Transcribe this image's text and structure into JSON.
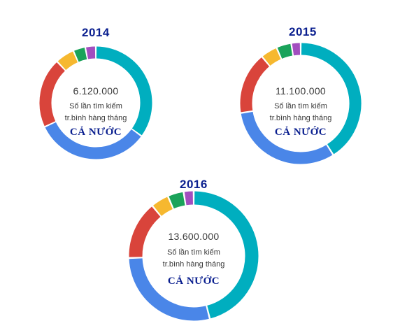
{
  "colors": {
    "teal": "#00aebf",
    "blue": "#4a86e8",
    "red": "#d9443b",
    "yellow": "#f6b82f",
    "green": "#1aa35a",
    "purple": "#a24ebf",
    "title": "#0a1f8f"
  },
  "chart_data": [
    {
      "type": "pie",
      "donut": true,
      "title": "2014",
      "total_label": "6.120.000",
      "description_line1": "Số lần tìm kiếm",
      "description_line2": "tr.bình hàng tháng",
      "region_label": "CẢ NƯỚC",
      "slices": [
        {
          "color": "#00aebf",
          "value": 35.0
        },
        {
          "color": "#4a86e8",
          "value": 33.0
        },
        {
          "color": "#d9443b",
          "value": 20.0
        },
        {
          "color": "#f6b82f",
          "value": 5.5
        },
        {
          "color": "#1aa35a",
          "value": 3.5
        },
        {
          "color": "#a24ebf",
          "value": 3.0
        }
      ]
    },
    {
      "type": "pie",
      "donut": true,
      "title": "2015",
      "total_label": "11.100.000",
      "description_line1": "Số lần tìm kiếm",
      "description_line2": "tr.bình hàng tháng",
      "region_label": "CẢ NƯỚC",
      "slices": [
        {
          "color": "#00aebf",
          "value": 41.0
        },
        {
          "color": "#4a86e8",
          "value": 31.5
        },
        {
          "color": "#d9443b",
          "value": 16.5
        },
        {
          "color": "#f6b82f",
          "value": 4.5
        },
        {
          "color": "#1aa35a",
          "value": 4.0
        },
        {
          "color": "#a24ebf",
          "value": 2.5
        }
      ]
    },
    {
      "type": "pie",
      "donut": true,
      "title": "2016",
      "total_label": "13.600.000",
      "description_line1": "Số lần tìm kiếm",
      "description_line2": "tr.bình hàng tháng",
      "region_label": "CẢ NƯỚC",
      "slices": [
        {
          "color": "#00aebf",
          "value": 46.0
        },
        {
          "color": "#4a86e8",
          "value": 28.5
        },
        {
          "color": "#d9443b",
          "value": 14.5
        },
        {
          "color": "#f6b82f",
          "value": 4.5
        },
        {
          "color": "#1aa35a",
          "value": 4.0
        },
        {
          "color": "#a24ebf",
          "value": 2.5
        }
      ]
    }
  ]
}
